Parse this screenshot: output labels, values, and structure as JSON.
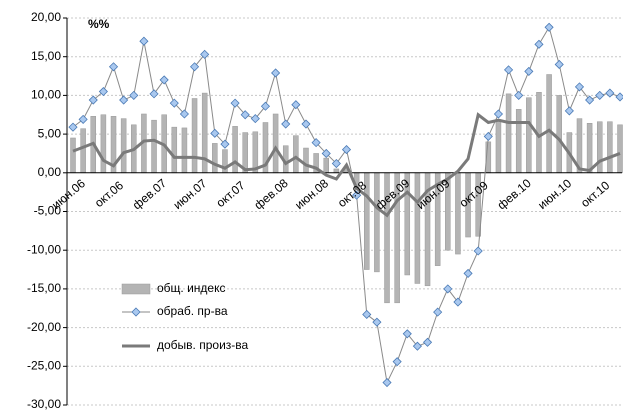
{
  "chart_data": {
    "type": "combo",
    "unit_label": "%%",
    "categories": [
      "июн.06",
      null,
      null,
      null,
      "окт.06",
      null,
      null,
      null,
      "фев.07",
      null,
      null,
      null,
      "июн.07",
      null,
      null,
      null,
      "окт.07",
      null,
      null,
      null,
      "фев.08",
      null,
      null,
      null,
      "июн.08",
      null,
      null,
      null,
      "окт.08",
      null,
      null,
      null,
      "фев.09",
      null,
      null,
      null,
      "июн.09",
      null,
      null,
      null,
      "окт.09",
      null,
      null,
      null,
      "фев.10",
      null,
      null,
      null,
      "июн.10",
      null,
      null,
      null,
      "окт.10",
      null,
      null
    ],
    "series": [
      {
        "name": "общ. индекс",
        "type": "bar",
        "color": "#b4b4b4",
        "values": [
          4.5,
          5.7,
          7.3,
          7.5,
          7.3,
          7.0,
          6.2,
          7.6,
          6.8,
          7.5,
          5.9,
          5.8,
          9.6,
          10.3,
          3.8,
          3.0,
          6.0,
          5.2,
          5.3,
          6.5,
          7.6,
          3.5,
          4.8,
          3.2,
          2.5,
          1.9,
          0.5,
          0.6,
          -2.0,
          -12.5,
          -12.8,
          -16.8,
          -16.8,
          -13.2,
          -14.3,
          -14.6,
          -12.0,
          -10.0,
          -10.5,
          -8.3,
          -8.2,
          4.0,
          6.8,
          10.2,
          8.2,
          9.7,
          10.4,
          12.7,
          10.0,
          5.2,
          7.0,
          6.4,
          6.6,
          6.6,
          6.2
        ]
      },
      {
        "name": "обраб. пр-ва",
        "type": "line",
        "marker": "diamond",
        "color": "#8a8a8a",
        "marker_color": "#a9c8ef",
        "values": [
          5.9,
          6.9,
          9.4,
          10.5,
          13.7,
          9.4,
          10.0,
          17.0,
          10.2,
          12.0,
          9.0,
          7.6,
          13.7,
          15.3,
          5.1,
          3.7,
          9.0,
          7.5,
          7.0,
          8.6,
          12.9,
          6.3,
          8.8,
          6.3,
          3.9,
          2.5,
          1.2,
          3.0,
          -2.9,
          -18.3,
          -19.3,
          -27.1,
          -24.4,
          -20.8,
          -22.4,
          -21.9,
          -18.0,
          -15.0,
          -16.7,
          -13.0,
          -10.1,
          4.7,
          7.6,
          13.3,
          10.0,
          13.1,
          16.6,
          18.8,
          14.0,
          8.0,
          11.1,
          9.4,
          10.0,
          10.3,
          9.8
        ]
      },
      {
        "name": "добыв. произ-ва",
        "type": "line",
        "color": "#7a7a7a",
        "values": [
          2.8,
          3.3,
          3.8,
          1.6,
          0.9,
          2.6,
          3.0,
          4.1,
          4.2,
          3.6,
          2.0,
          2.0,
          2.0,
          1.8,
          1.1,
          0.6,
          1.4,
          0.4,
          0.5,
          1.0,
          3.2,
          1.2,
          2.0,
          1.0,
          0.6,
          -0.3,
          -0.8,
          1.0,
          -2.0,
          -3.0,
          -4.5,
          -5.5,
          -3.6,
          -2.5,
          -3.8,
          -2.3,
          -1.5,
          -0.8,
          0.2,
          1.8,
          7.5,
          6.5,
          6.8,
          6.5,
          6.5,
          6.5,
          4.7,
          5.5,
          4.3,
          2.5,
          0.5,
          0.3,
          1.5,
          2.0,
          2.5
        ]
      }
    ],
    "ylim": [
      -30,
      20
    ],
    "yticks": [
      {
        "value": 20,
        "label": "20,00"
      },
      {
        "value": 15,
        "label": "15,00"
      },
      {
        "value": 10,
        "label": "10,00"
      },
      {
        "value": 5,
        "label": "5,00"
      },
      {
        "value": 0,
        "label": "0,00"
      },
      {
        "value": -5,
        "label": "-5,00"
      },
      {
        "value": -10,
        "label": "-10,00"
      },
      {
        "value": -15,
        "label": "-15,00"
      },
      {
        "value": -20,
        "label": "-20,00"
      },
      {
        "value": -25,
        "label": "-25,00"
      },
      {
        "value": -30,
        "label": "-30,00"
      }
    ],
    "grid": true,
    "legend": "lower-left"
  }
}
